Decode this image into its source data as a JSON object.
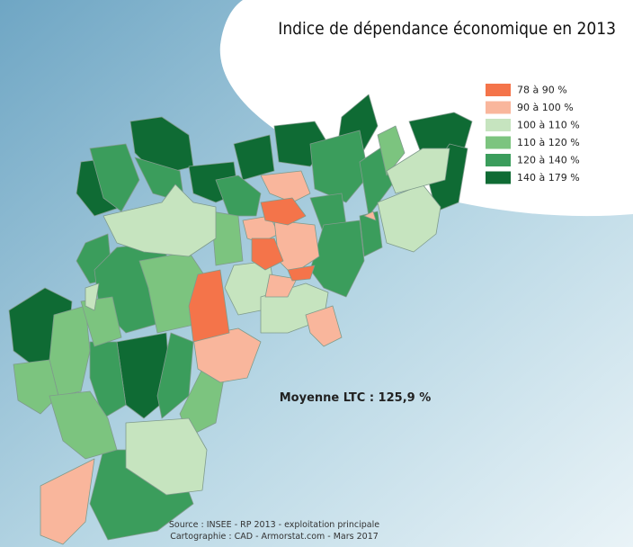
{
  "title": "Indice de dépendance économique en 2013",
  "legend": [
    {
      "label": "78 à 90 %",
      "color": "#f4744a"
    },
    {
      "label": "90 à 100 %",
      "color": "#f9b69c"
    },
    {
      "label": "100 à 110 %",
      "color": "#c6e4bf"
    },
    {
      "label": "110 à 120 %",
      "color": "#7cc47f"
    },
    {
      "label": "120 à 140 %",
      "color": "#3b9d5c"
    },
    {
      "label": "140 à 179 %",
      "color": "#0f6b34"
    }
  ],
  "average": "Moyenne LTC : 125,9 %",
  "source": [
    "Source : INSEE - RP 2013 - exploitation principale",
    "Cartographie : CAD - Armorstat.com - Mars 2017"
  ]
}
